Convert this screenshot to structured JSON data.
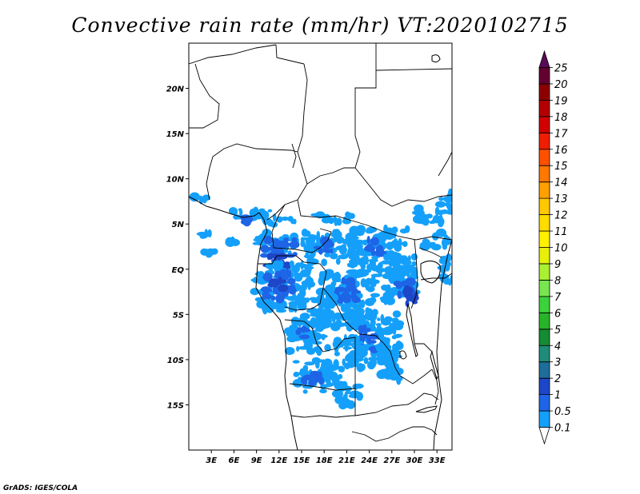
{
  "title": "Convective rain rate (mm/hr) VT:2020102715",
  "footer": "GrADS: IGES/COLA",
  "map": {
    "lon_range": [
      0,
      35
    ],
    "lat_range": [
      -20,
      25
    ],
    "xtick_labels": [
      "3E",
      "6E",
      "9E",
      "12E",
      "15E",
      "18E",
      "21E",
      "24E",
      "27E",
      "30E",
      "33E"
    ],
    "xtick_values": [
      3,
      6,
      9,
      12,
      15,
      18,
      21,
      24,
      27,
      30,
      33
    ],
    "ytick_labels": [
      "20N",
      "15N",
      "10N",
      "5N",
      "EQ",
      "5S",
      "10S",
      "15S"
    ],
    "ytick_values": [
      20,
      15,
      10,
      5,
      0,
      -5,
      -10,
      -15
    ]
  },
  "colorbar": {
    "labels": [
      "0.1",
      "0.5",
      "1",
      "2",
      "3",
      "4",
      "5",
      "6",
      "7",
      "8",
      "9",
      "10",
      "11",
      "12",
      "13",
      "14",
      "15",
      "16",
      "17",
      "18",
      "19",
      "20",
      "25"
    ],
    "colors": [
      "#ffffff",
      "#14a0fa",
      "#1e64e6",
      "#1e46c8",
      "#1e6e9b",
      "#1e8c78",
      "#148c32",
      "#28b428",
      "#3cd23c",
      "#78e650",
      "#aaf032",
      "#e6f00a",
      "#fff000",
      "#ffdc00",
      "#ffc800",
      "#ffa000",
      "#ff7800",
      "#ff5000",
      "#f01e00",
      "#d20000",
      "#b40000",
      "#8c0000",
      "#640032",
      "#5a0a5a"
    ]
  },
  "rain_colors": {
    "light": "#14a0fa",
    "medium": "#1e64e6",
    "heavy": "#1e46c8"
  }
}
